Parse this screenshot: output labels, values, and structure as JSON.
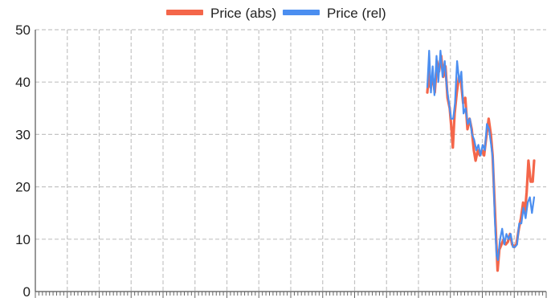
{
  "chart_data": {
    "type": "line",
    "title": "",
    "xlabel": "",
    "ylabel": "",
    "xlim": [
      0,
      144
    ],
    "ylim": [
      0,
      50
    ],
    "yticks": [
      0,
      10,
      20,
      30,
      40,
      50
    ],
    "x_minor_ticks": 144,
    "x_major_every": 9,
    "grid": true,
    "legend_position": "top-center",
    "series": [
      {
        "name": "Price (abs)",
        "color": "#f4664a",
        "points": [
          [
            110.5,
            38
          ],
          [
            111.0,
            42
          ],
          [
            111.4,
            39
          ],
          [
            112.0,
            41
          ],
          [
            112.6,
            38
          ],
          [
            113.2,
            44
          ],
          [
            113.8,
            42
          ],
          [
            114.4,
            45
          ],
          [
            115.0,
            41
          ],
          [
            115.6,
            43
          ],
          [
            116.2,
            37
          ],
          [
            116.8,
            35
          ],
          [
            117.3,
            31
          ],
          [
            117.7,
            27.5
          ],
          [
            118.2,
            34
          ],
          [
            118.8,
            38
          ],
          [
            119.4,
            41
          ],
          [
            120.0,
            40
          ],
          [
            120.6,
            36
          ],
          [
            121.2,
            37
          ],
          [
            121.8,
            31
          ],
          [
            122.4,
            33
          ],
          [
            123.0,
            31
          ],
          [
            123.6,
            27
          ],
          [
            124.1,
            25
          ],
          [
            124.7,
            27
          ],
          [
            125.3,
            26
          ],
          [
            125.9,
            27
          ],
          [
            126.5,
            26
          ],
          [
            127.2,
            30
          ],
          [
            127.8,
            33
          ],
          [
            128.4,
            30
          ],
          [
            128.9,
            26
          ],
          [
            129.4,
            18
          ],
          [
            129.9,
            10
          ],
          [
            130.3,
            4
          ],
          [
            130.8,
            8
          ],
          [
            131.4,
            9
          ],
          [
            132.0,
            10
          ],
          [
            132.6,
            9
          ],
          [
            133.2,
            9.5
          ],
          [
            133.8,
            11
          ],
          [
            134.4,
            9
          ],
          [
            135.0,
            8.5
          ],
          [
            135.6,
            9
          ],
          [
            136.3,
            12
          ],
          [
            136.9,
            14
          ],
          [
            137.5,
            17
          ],
          [
            138.0,
            15
          ],
          [
            138.5,
            19
          ],
          [
            139.0,
            25
          ],
          [
            139.6,
            21
          ],
          [
            140.2,
            21
          ],
          [
            140.6,
            25
          ]
        ]
      },
      {
        "name": "Price (rel)",
        "color": "#4b8ef0",
        "points": [
          [
            110.5,
            39
          ],
          [
            111.0,
            46
          ],
          [
            111.5,
            38
          ],
          [
            112.0,
            43
          ],
          [
            112.5,
            37.5
          ],
          [
            113.1,
            45
          ],
          [
            113.6,
            40
          ],
          [
            114.2,
            46
          ],
          [
            114.8,
            41
          ],
          [
            115.4,
            44
          ],
          [
            116.0,
            39
          ],
          [
            116.6,
            36
          ],
          [
            117.2,
            33
          ],
          [
            117.8,
            33
          ],
          [
            118.3,
            36
          ],
          [
            118.9,
            44
          ],
          [
            119.5,
            40
          ],
          [
            120.1,
            42
          ],
          [
            120.7,
            34
          ],
          [
            121.3,
            35
          ],
          [
            121.9,
            32
          ],
          [
            122.5,
            33
          ],
          [
            123.1,
            30
          ],
          [
            123.7,
            29
          ],
          [
            124.3,
            27
          ],
          [
            124.9,
            28
          ],
          [
            125.5,
            26
          ],
          [
            126.1,
            28
          ],
          [
            126.7,
            27
          ],
          [
            127.3,
            32
          ],
          [
            127.9,
            31
          ],
          [
            128.5,
            28
          ],
          [
            129.0,
            25
          ],
          [
            129.5,
            14
          ],
          [
            130.0,
            7
          ],
          [
            130.4,
            6
          ],
          [
            131.0,
            10
          ],
          [
            131.6,
            12
          ],
          [
            132.2,
            9
          ],
          [
            132.8,
            11
          ],
          [
            133.4,
            10
          ],
          [
            134.0,
            11
          ],
          [
            134.6,
            8.5
          ],
          [
            135.2,
            8.5
          ],
          [
            135.8,
            9
          ],
          [
            136.4,
            13
          ],
          [
            137.0,
            13
          ],
          [
            137.6,
            16
          ],
          [
            138.2,
            14
          ],
          [
            138.8,
            17
          ],
          [
            139.4,
            18
          ],
          [
            140.0,
            15
          ],
          [
            140.6,
            18
          ]
        ]
      }
    ]
  }
}
